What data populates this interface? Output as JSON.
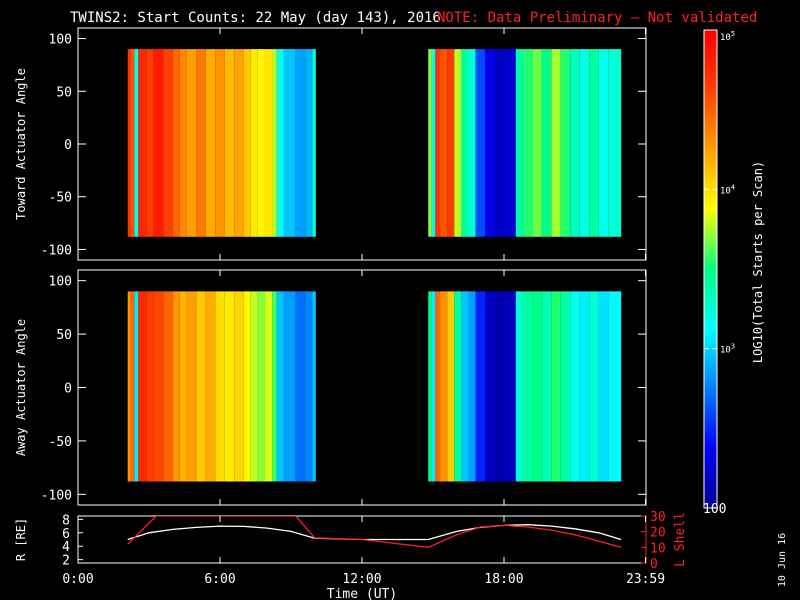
{
  "title": {
    "main": "TWINS2: Start Counts: 22 May (day 143), 2016",
    "note": "NOTE: Data Preliminary – Not validated"
  },
  "stamp": "10 Jun 16",
  "colors": {
    "background": "#000000",
    "axes": "#ffffff",
    "note": "#ff2020",
    "r_line": "#ffffff",
    "lshell_line": "#ff2020"
  },
  "colorbar": {
    "label": "LOG10(Total Starts per Scan)",
    "scale": "log",
    "range": [
      100,
      100000
    ],
    "ticks": [
      {
        "value": 100000,
        "base": "10",
        "exp": "5"
      },
      {
        "value": 10000,
        "base": "10",
        "exp": "4"
      },
      {
        "value": 1000,
        "base": "10",
        "exp": "3"
      },
      {
        "value": 100,
        "label": "100"
      }
    ]
  },
  "chart_data": [
    {
      "type": "heatmap",
      "ylabel": "Toward Actuator Angle",
      "xlim": [
        0,
        24
      ],
      "ylim": [
        -110,
        110
      ],
      "yticks": [
        -100,
        -50,
        0,
        50,
        100
      ],
      "data_y_range": [
        -88,
        90
      ],
      "scale": "log",
      "blocks": [
        {
          "x_start": 2.1,
          "x_end": 10.05,
          "columns": [
            [
              2.1,
              50000
            ],
            [
              2.22,
              35000
            ],
            [
              2.38,
              1500
            ],
            [
              2.55,
              60000
            ],
            [
              2.9,
              45000
            ],
            [
              3.2,
              70000
            ],
            [
              3.6,
              42000
            ],
            [
              4.0,
              30000
            ],
            [
              4.3,
              22000
            ],
            [
              4.6,
              18000
            ],
            [
              5.0,
              25000
            ],
            [
              5.4,
              16000
            ],
            [
              5.8,
              20000
            ],
            [
              6.2,
              14000
            ],
            [
              6.6,
              17000
            ],
            [
              7.0,
              12000
            ],
            [
              7.3,
              9000
            ],
            [
              7.6,
              8000
            ],
            [
              7.9,
              9500
            ],
            [
              8.2,
              6000
            ],
            [
              8.4,
              1500
            ],
            [
              8.7,
              900
            ],
            [
              9.2,
              700
            ],
            [
              9.6,
              800
            ],
            [
              9.9,
              1800
            ]
          ]
        },
        {
          "x_start": 14.8,
          "x_end": 22.95,
          "columns": [
            [
              14.8,
              5000
            ],
            [
              14.95,
              1500
            ],
            [
              15.1,
              50000
            ],
            [
              15.3,
              35000
            ],
            [
              15.6,
              45000
            ],
            [
              15.9,
              6000
            ],
            [
              16.2,
              2500
            ],
            [
              16.5,
              1800
            ],
            [
              16.8,
              400
            ],
            [
              17.2,
              200
            ],
            [
              17.6,
              150
            ],
            [
              18.0,
              160
            ],
            [
              18.3,
              180
            ],
            [
              18.5,
              2500
            ],
            [
              18.8,
              3500
            ],
            [
              19.2,
              4500
            ],
            [
              19.6,
              3000
            ],
            [
              20.0,
              5500
            ],
            [
              20.4,
              3500
            ],
            [
              20.8,
              2000
            ],
            [
              21.2,
              1600
            ],
            [
              21.6,
              2600
            ],
            [
              22.0,
              1500
            ],
            [
              22.4,
              1800
            ]
          ]
        }
      ]
    },
    {
      "type": "heatmap",
      "ylabel": "Away Actuator Angle",
      "xlim": [
        0,
        24
      ],
      "ylim": [
        -110,
        110
      ],
      "yticks": [
        -100,
        -50,
        0,
        50,
        100
      ],
      "data_y_range": [
        -88,
        90
      ],
      "scale": "log",
      "blocks": [
        {
          "x_start": 2.1,
          "x_end": 10.05,
          "columns": [
            [
              2.1,
              20000
            ],
            [
              2.22,
              30000
            ],
            [
              2.38,
              1200
            ],
            [
              2.55,
              60000
            ],
            [
              2.9,
              45000
            ],
            [
              3.2,
              40000
            ],
            [
              3.6,
              30000
            ],
            [
              4.0,
              20000
            ],
            [
              4.3,
              15000
            ],
            [
              4.6,
              18000
            ],
            [
              5.0,
              12000
            ],
            [
              5.4,
              16000
            ],
            [
              5.8,
              10000
            ],
            [
              6.2,
              9000
            ],
            [
              6.6,
              11000
            ],
            [
              7.0,
              8000
            ],
            [
              7.3,
              6000
            ],
            [
              7.6,
              5000
            ],
            [
              7.9,
              6500
            ],
            [
              8.2,
              4000
            ],
            [
              8.4,
              900
            ],
            [
              8.7,
              700
            ],
            [
              9.2,
              500
            ],
            [
              9.6,
              600
            ],
            [
              9.9,
              900
            ]
          ]
        },
        {
          "x_start": 14.8,
          "x_end": 22.95,
          "columns": [
            [
              14.8,
              3000
            ],
            [
              14.95,
              1200
            ],
            [
              15.1,
              30000
            ],
            [
              15.3,
              20000
            ],
            [
              15.6,
              12000
            ],
            [
              15.9,
              2500
            ],
            [
              16.2,
              900
            ],
            [
              16.5,
              700
            ],
            [
              16.8,
              300
            ],
            [
              17.2,
              150
            ],
            [
              17.6,
              130
            ],
            [
              18.0,
              140
            ],
            [
              18.3,
              150
            ],
            [
              18.5,
              1800
            ],
            [
              18.8,
              2500
            ],
            [
              19.2,
              3000
            ],
            [
              19.6,
              2200
            ],
            [
              20.0,
              3500
            ],
            [
              20.4,
              2500
            ],
            [
              20.8,
              1500
            ],
            [
              21.2,
              1200
            ],
            [
              21.6,
              1800
            ],
            [
              22.0,
              1100
            ],
            [
              22.4,
              1300
            ]
          ]
        }
      ]
    },
    {
      "type": "line",
      "ylabel": "R [RE]",
      "ylabel_right": "L Shell",
      "xlabel": "Time (UT)",
      "xlim": [
        0,
        24
      ],
      "ylim": [
        1.5,
        8.5
      ],
      "yticks": [
        2,
        4,
        6,
        8
      ],
      "ylim_right": [
        0,
        30
      ],
      "yticks_right": [
        0,
        10,
        20,
        30
      ],
      "xtick_labels": [
        "0:00",
        "6:00",
        "12:00",
        "18:00",
        "23:59"
      ],
      "xtick_values": [
        0,
        6,
        12,
        18,
        23.98
      ],
      "series": [
        {
          "name": "R",
          "axis": "left",
          "x": [
            2.1,
            3.0,
            4.0,
            5.0,
            6.0,
            7.0,
            8.0,
            9.0,
            10.0,
            12.0,
            14.8,
            16.0,
            17.0,
            18.0,
            19.0,
            20.0,
            21.0,
            22.0,
            22.95
          ],
          "y": [
            5.0,
            6.0,
            6.5,
            6.8,
            7.0,
            6.95,
            6.7,
            6.2,
            5.2,
            5.0,
            5.0,
            6.2,
            6.8,
            7.1,
            7.2,
            7.0,
            6.6,
            6.0,
            5.0
          ]
        },
        {
          "name": "L Shell",
          "axis": "right",
          "x": [
            2.1,
            3.3,
            9.2,
            10.0,
            12.0,
            14.8,
            16.0,
            17.0,
            18.0,
            19.0,
            20.0,
            21.0,
            22.0,
            22.95
          ],
          "y": [
            12,
            30,
            30,
            16,
            15,
            10,
            18,
            23,
            24,
            23,
            21,
            18,
            14,
            10
          ]
        }
      ]
    }
  ]
}
